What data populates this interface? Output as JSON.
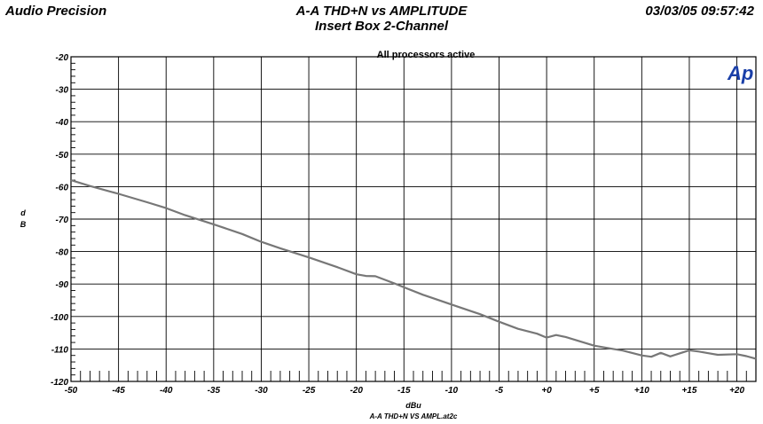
{
  "header": {
    "company": "Audio Precision",
    "title": "A-A THD+N vs AMPLITUDE",
    "subtitle": "Insert Box 2-Channel",
    "timestamp": "03/03/05 09:57:42",
    "logo": "Ap"
  },
  "chart_data": {
    "type": "line",
    "title": "A-A THD+N vs AMPLITUDE",
    "subtitle": "Insert Box 2-Channel",
    "annotation": "All processors active",
    "xlabel": "dBu",
    "ylabel": "d B",
    "xlim": [
      -50,
      22
    ],
    "ylim": [
      -120,
      -20
    ],
    "x_ticks": [
      -50,
      -45,
      -40,
      -35,
      -30,
      -25,
      -20,
      -15,
      -10,
      -5,
      0,
      5,
      10,
      15,
      20
    ],
    "x_tick_labels": [
      "-50",
      "-45",
      "-40",
      "-35",
      "-30",
      "-25",
      "-20",
      "-15",
      "-10",
      "-5",
      "+0",
      "+5",
      "+10",
      "+15",
      "+20"
    ],
    "y_ticks": [
      -20,
      -30,
      -40,
      -50,
      -60,
      -70,
      -80,
      -90,
      -100,
      -110,
      -120
    ],
    "y_tick_labels": [
      "-20",
      "-30",
      "-40",
      "-50",
      "-60",
      "-70",
      "-80",
      "-90",
      "-100",
      "-110",
      "-120"
    ],
    "grid": true,
    "line_color": "#777777",
    "series": [
      {
        "x": [
          -50,
          -48,
          -45,
          -42,
          -40,
          -38,
          -35,
          -32,
          -30,
          -28,
          -25,
          -22,
          -20,
          -19,
          -18,
          -16,
          -15,
          -13,
          -12,
          -10,
          -8,
          -7,
          -5,
          -3,
          -1,
          0,
          1,
          2,
          3,
          5,
          7,
          8,
          10,
          11,
          12,
          13,
          15,
          16,
          17,
          18,
          20,
          21,
          22
        ],
        "y": [
          -58,
          -59.8,
          -62.2,
          -64.8,
          -66.6,
          -68.8,
          -71.6,
          -74.6,
          -77,
          -79,
          -81.8,
          -84.8,
          -87,
          -87.5,
          -87.6,
          -89.8,
          -91,
          -93.3,
          -94.3,
          -96.3,
          -98.3,
          -99.3,
          -101.6,
          -103.8,
          -105.3,
          -106.5,
          -105.7,
          -106.3,
          -107.2,
          -109,
          -110,
          -110.5,
          -112,
          -112.4,
          -111.2,
          -112.3,
          -110.4,
          -110.8,
          -111.3,
          -111.8,
          -111.6,
          -112.2,
          -113
        ]
      }
    ]
  },
  "footer": {
    "filename": "A-A THD+N VS AMPL.at2c"
  }
}
